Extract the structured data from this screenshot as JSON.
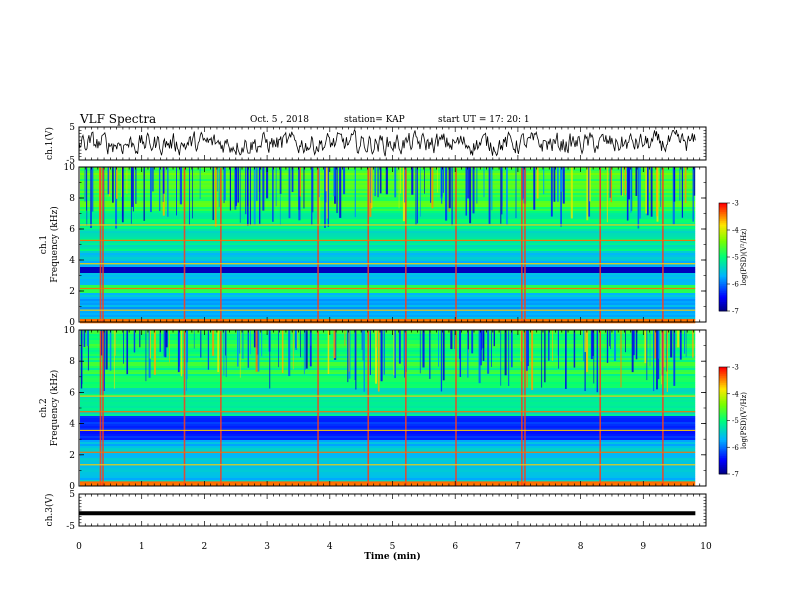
{
  "header": {
    "title": "VLF Spectra",
    "date": "Oct. 5 , 2018",
    "station": "station= KAP",
    "start_ut": "start UT = 17: 20: 1"
  },
  "chart_data": [
    {
      "type": "line",
      "panel": "ch1-waveform",
      "ylabel": "ch.1(V)",
      "xlim": [
        0,
        10
      ],
      "ylim": [
        -5,
        5
      ],
      "yticks": [
        -5,
        5
      ],
      "data_extent_min": [
        0,
        9.83
      ],
      "signal": "noise-like waveform oscillating roughly between -3 and 3 V"
    },
    {
      "type": "heatmap",
      "panel": "ch1-spectrogram",
      "ylabel": "ch.1 Frequency (kHz)",
      "xlim": [
        0,
        10
      ],
      "ylim": [
        0,
        10
      ],
      "yticks": [
        0,
        2,
        4,
        6,
        8,
        10
      ],
      "data_extent_min": [
        0,
        9.83
      ],
      "colorbar": {
        "label": "log(PSD)(V²/Hz)",
        "range": [
          -7,
          -3
        ],
        "ticks": [
          -3,
          -4,
          -5,
          -6,
          -7
        ]
      }
    },
    {
      "type": "heatmap",
      "panel": "ch2-spectrogram",
      "ylabel": "ch.2 Frequency (kHz)",
      "xlim": [
        0,
        10
      ],
      "ylim": [
        0,
        10
      ],
      "yticks": [
        0,
        2,
        4,
        6,
        8,
        10
      ],
      "data_extent_min": [
        0,
        9.83
      ],
      "colorbar": {
        "label": "log(PSD)(V²/Hz)",
        "range": [
          -7,
          -3
        ],
        "ticks": [
          -3,
          -4,
          -5,
          -6,
          -7
        ]
      }
    },
    {
      "type": "line",
      "panel": "ch3-waveform",
      "ylabel": "ch.3(V)",
      "xlabel": "Time (min)",
      "xlim": [
        0,
        10
      ],
      "xticks": [
        0,
        1,
        2,
        3,
        4,
        5,
        6,
        7,
        8,
        9,
        10
      ],
      "ylim": [
        -5,
        5
      ],
      "yticks": [
        -5,
        5
      ],
      "data_extent_min": [
        0,
        9.83
      ],
      "signal": "flat line near -1 V"
    }
  ],
  "colors": {
    "low": "#00008b",
    "mid": "#00ff66",
    "high": "#ff0000",
    "trace": "#000000"
  }
}
